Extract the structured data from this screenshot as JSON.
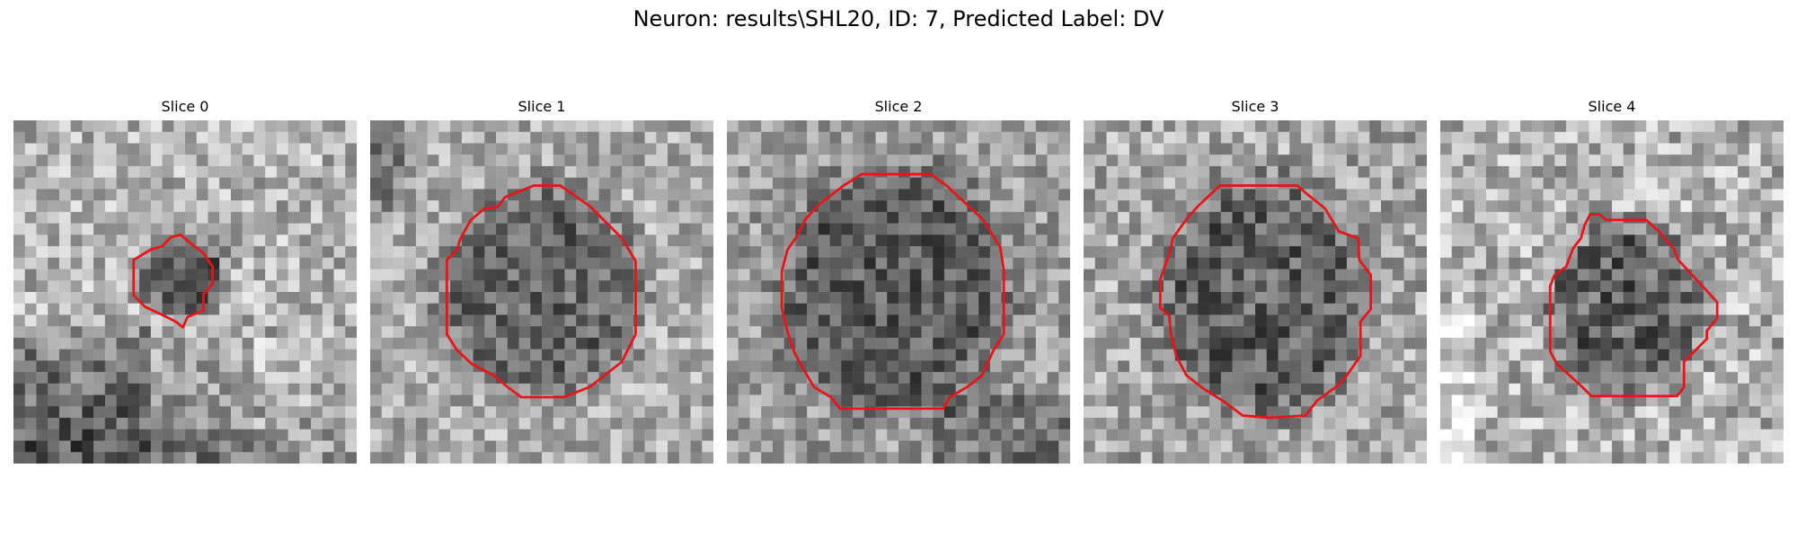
{
  "figure": {
    "suptitle": "Neuron: results\\SHL20, ID: 7, Predicted Label: DV"
  },
  "panels": [
    {
      "title": "Slice 0",
      "contour_color": "#e8141a"
    },
    {
      "title": "Slice 1",
      "contour_color": "#e8141a"
    },
    {
      "title": "Slice 2",
      "contour_color": "#e8141a"
    },
    {
      "title": "Slice 3",
      "contour_color": "#e8141a"
    },
    {
      "title": "Slice 4",
      "contour_color": "#e8141a"
    }
  ]
}
